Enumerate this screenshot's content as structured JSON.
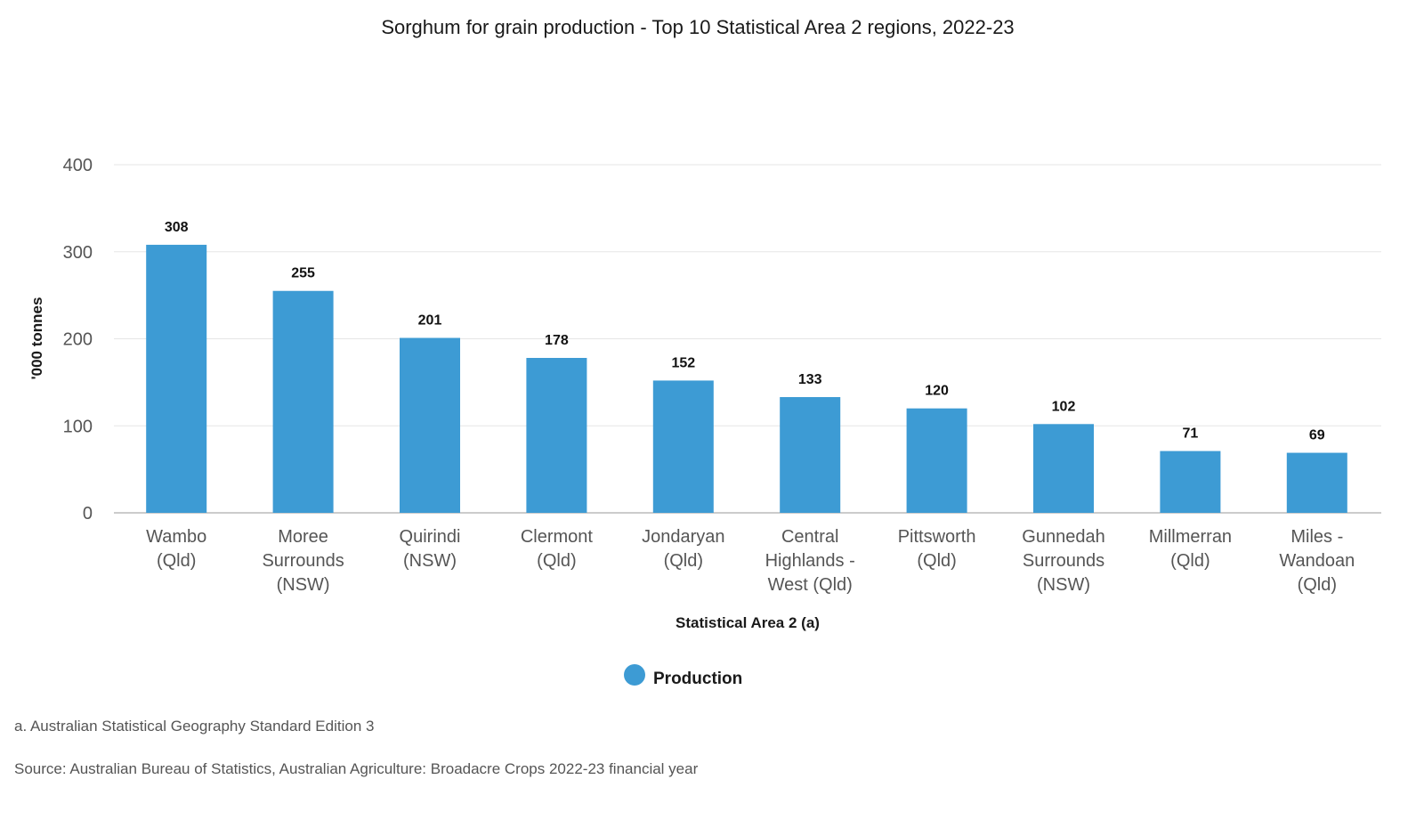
{
  "chart_data": {
    "type": "bar",
    "title": "Sorghum for grain production - Top 10 Statistical Area 2 regions, 2022-23",
    "xlabel": "Statistical Area 2 (a)",
    "ylabel": "'000 tonnes",
    "categories": [
      [
        "Wambo",
        "(Qld)"
      ],
      [
        "Moree",
        "Surrounds",
        "(NSW)"
      ],
      [
        "Quirindi",
        "(NSW)"
      ],
      [
        "Clermont",
        "(Qld)"
      ],
      [
        "Jondaryan",
        "(Qld)"
      ],
      [
        "Central",
        "Highlands -",
        "West (Qld)"
      ],
      [
        "Pittsworth",
        "(Qld)"
      ],
      [
        "Gunnedah",
        "Surrounds",
        "(NSW)"
      ],
      [
        "Millmerran",
        "(Qld)"
      ],
      [
        "Miles -",
        "Wandoan",
        "(Qld)"
      ]
    ],
    "series": [
      {
        "name": "Production",
        "values": [
          308,
          255,
          201,
          178,
          152,
          133,
          120,
          102,
          71,
          69
        ]
      }
    ],
    "ylim": [
      0,
      400
    ],
    "yticks": [
      0,
      100,
      200,
      300,
      400
    ],
    "grid": true,
    "legend": "bottom-center",
    "color": "#3d9bd4"
  },
  "footnote": "a. Australian Statistical Geography Standard Edition 3",
  "source": "Source: Australian Bureau of Statistics, Australian Agriculture: Broadacre Crops 2022-23 financial year"
}
